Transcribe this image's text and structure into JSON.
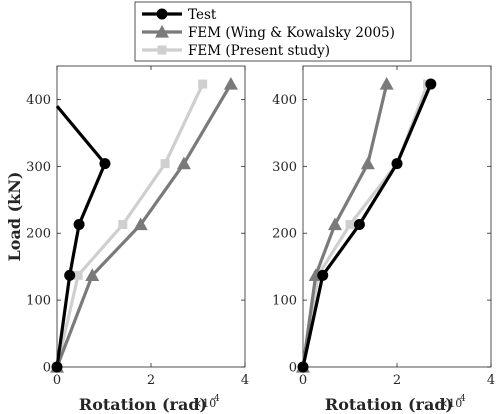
{
  "chart_data": [
    {
      "type": "line",
      "title": "",
      "xlabel": "Rotation (rad)",
      "ylabel": "Load (kN)",
      "x_multiplier_label": "×10",
      "x_multiplier_exponent": "-4",
      "xlim": [
        0,
        4
      ],
      "ylim": [
        0,
        450
      ],
      "xticks": [
        0,
        2,
        4
      ],
      "yticks": [
        0,
        100,
        200,
        300,
        400
      ],
      "grid": false,
      "series": [
        {
          "name": "Test",
          "color": "#000000",
          "marker": "circle",
          "x": [
            0,
            0.27,
            0.47,
            1.02,
            0
          ],
          "y": [
            0,
            137,
            213,
            304,
            390
          ],
          "marker_count": 4
        },
        {
          "name": "FEM (Wing & Kowalsky 2005)",
          "color": "#7a7a7a",
          "marker": "triangle",
          "x": [
            0,
            0.75,
            1.78,
            2.7,
            3.7
          ],
          "y": [
            0,
            137,
            213,
            304,
            423
          ]
        },
        {
          "name": "FEM (Present study)",
          "color": "#cfcfcf",
          "marker": "square",
          "x": [
            0,
            0.45,
            1.4,
            2.3,
            3.1
          ],
          "y": [
            0,
            137,
            213,
            304,
            423
          ]
        }
      ]
    },
    {
      "type": "line",
      "title": "",
      "xlabel": "Rotation (rad)",
      "ylabel": "",
      "x_multiplier_label": "×10",
      "x_multiplier_exponent": "-4",
      "xlim": [
        0,
        4
      ],
      "ylim": [
        0,
        450
      ],
      "xticks": [
        0,
        2,
        4
      ],
      "yticks": [
        0,
        100,
        200,
        300,
        400
      ],
      "grid": false,
      "series": [
        {
          "name": "Test",
          "color": "#000000",
          "marker": "circle",
          "x": [
            0,
            0.42,
            1.2,
            2.0,
            2.72
          ],
          "y": [
            0,
            137,
            213,
            304,
            423
          ]
        },
        {
          "name": "FEM (Wing & Kowalsky 2005)",
          "color": "#7a7a7a",
          "marker": "triangle",
          "x": [
            0,
            0.27,
            0.68,
            1.38,
            1.78
          ],
          "y": [
            0,
            137,
            213,
            304,
            423
          ]
        },
        {
          "name": "FEM (Present study)",
          "color": "#cfcfcf",
          "marker": "square",
          "x": [
            0,
            0.32,
            1.0,
            2.0,
            2.65
          ],
          "y": [
            0,
            137,
            213,
            304,
            423
          ]
        }
      ]
    }
  ],
  "legend": {
    "placement": "top-center",
    "entries": [
      "Test",
      "FEM (Wing & Kowalsky 2005)",
      "FEM (Present study)"
    ]
  }
}
